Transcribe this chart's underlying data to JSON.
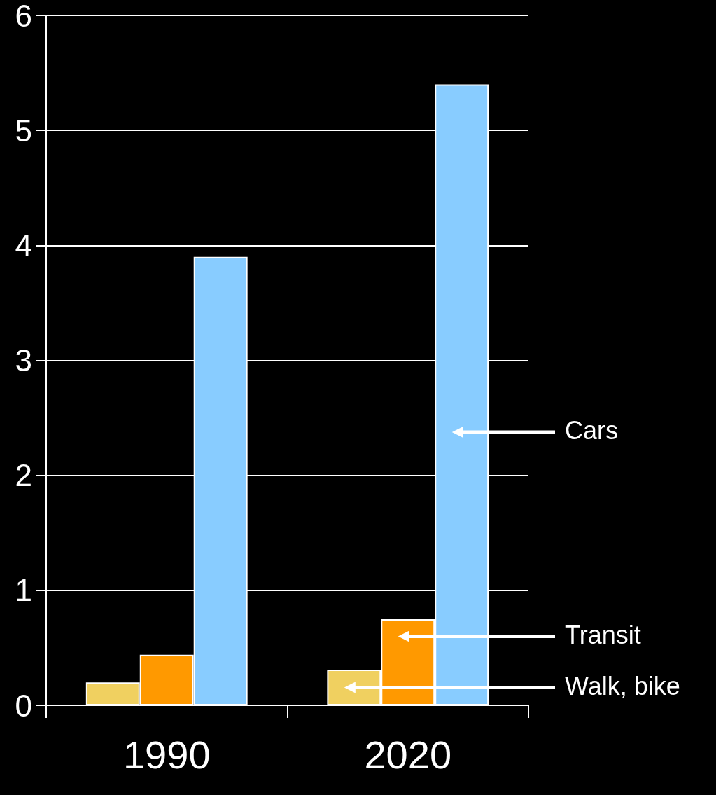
{
  "chart_data": {
    "type": "bar",
    "categories": [
      "1990",
      "2020"
    ],
    "series": [
      {
        "name": "Walk, bike",
        "color": "#f0d060",
        "values": [
          0.2,
          0.31
        ]
      },
      {
        "name": "Transit",
        "color": "#ff9900",
        "values": [
          0.44,
          0.75
        ]
      },
      {
        "name": "Cars",
        "color": "#88ccff",
        "values": [
          3.9,
          5.4
        ]
      }
    ],
    "ylim": [
      0,
      6
    ],
    "yticks": [
      0,
      1,
      2,
      3,
      4,
      5,
      6
    ],
    "grid": "y",
    "legend": "right"
  }
}
